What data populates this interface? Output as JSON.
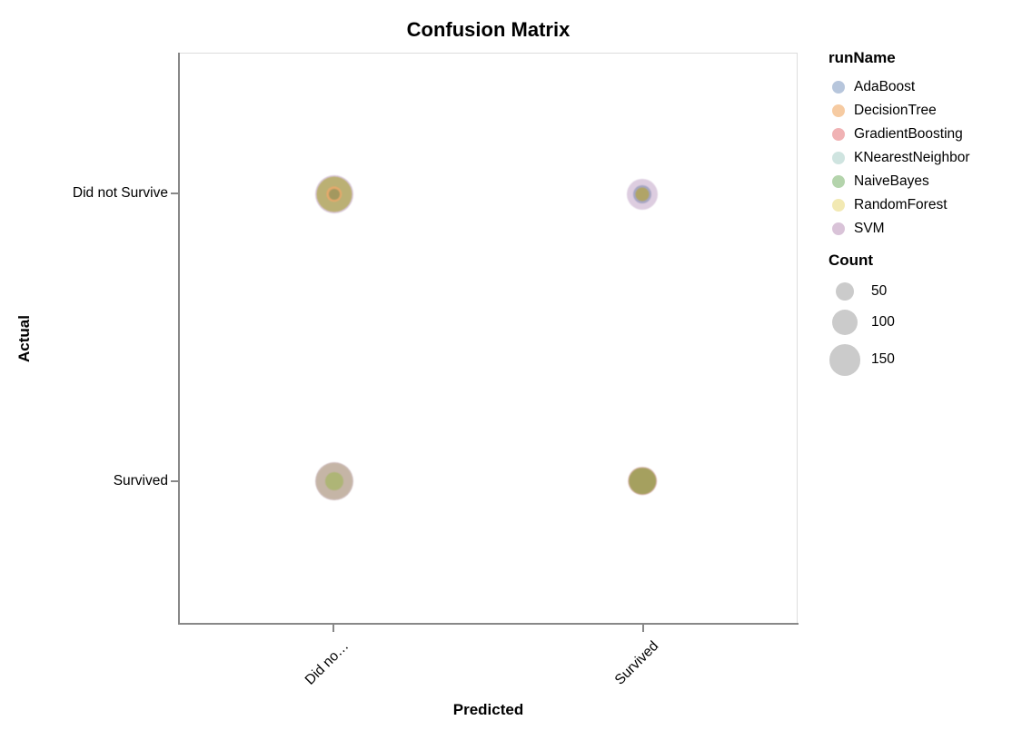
{
  "page_background": "#ffffff",
  "frame": {
    "view_border_color": "#dddddd",
    "axis_domain_color": "#888888",
    "tick_color": "#888888"
  },
  "chart_data": {
    "type": "scatter",
    "subtype": "bubble-confusion-matrix",
    "title": "Confusion Matrix",
    "xlabel": "Predicted",
    "ylabel": "Actual",
    "x_categories": [
      "Did not Survive",
      "Survived"
    ],
    "x_tick_labels": [
      "Did no…",
      "Survived"
    ],
    "y_categories": [
      "Did not Survive",
      "Survived"
    ],
    "grid": false,
    "legend_position": "right",
    "legend_runs": {
      "title": "runName",
      "items": [
        {
          "label": "AdaBoost",
          "color": "#b7c6dc"
        },
        {
          "label": "DecisionTree",
          "color": "#f6cba2"
        },
        {
          "label": "GradientBoosting",
          "color": "#f0b2b4"
        },
        {
          "label": "KNearestNeighbor",
          "color": "#cfe4e0"
        },
        {
          "label": "NaiveBayes",
          "color": "#b4d4ac"
        },
        {
          "label": "RandomForest",
          "color": "#f2e9b3"
        },
        {
          "label": "SVM",
          "color": "#d9c3d8"
        }
      ]
    },
    "legend_size": {
      "title": "Count",
      "values": [
        50,
        100,
        150
      ],
      "circle_color": "#cbcbcb",
      "radius_px_for_values": [
        10,
        14.1,
        17.3
      ]
    },
    "cells": [
      {
        "actual": "Did not Survive",
        "predicted": "Did not Survive",
        "x_frac": 0.25,
        "y_frac": 0.2465,
        "layers": [
          {
            "radius_px": 21.0,
            "est_count": 220,
            "color": "#d8c6d8"
          },
          {
            "radius_px": 19.5,
            "est_count": 190,
            "color": "#bbb074"
          },
          {
            "radius_px": 8.7,
            "est_count": 38,
            "color": "#e2a96c"
          },
          {
            "radius_px": 6.0,
            "est_count": 18,
            "color": "#a3985f"
          }
        ]
      },
      {
        "actual": "Did not Survive",
        "predicted": "Survived",
        "x_frac": 0.75,
        "y_frac": 0.2465,
        "layers": [
          {
            "radius_px": 17.0,
            "est_count": 145,
            "color": "#ddcde0"
          },
          {
            "radius_px": 10.0,
            "est_count": 50,
            "color": "#a6a6c3"
          },
          {
            "radius_px": 7.5,
            "est_count": 28,
            "color": "#b0a467"
          }
        ]
      },
      {
        "actual": "Survived",
        "predicted": "Did not Survive",
        "x_frac": 0.25,
        "y_frac": 0.751,
        "layers": [
          {
            "radius_px": 21.0,
            "est_count": 220,
            "color": "#d2c1c2"
          },
          {
            "radius_px": 20.0,
            "est_count": 200,
            "color": "#c5b5a6"
          },
          {
            "radius_px": 10.0,
            "est_count": 50,
            "color": "#aeb576"
          }
        ]
      },
      {
        "actual": "Survived",
        "predicted": "Survived",
        "x_frac": 0.75,
        "y_frac": 0.751,
        "layers": [
          {
            "radius_px": 15.8,
            "est_count": 125,
            "color": "#dcbab4"
          },
          {
            "radius_px": 14.8,
            "est_count": 110,
            "color": "#a5a05f"
          }
        ]
      }
    ]
  }
}
